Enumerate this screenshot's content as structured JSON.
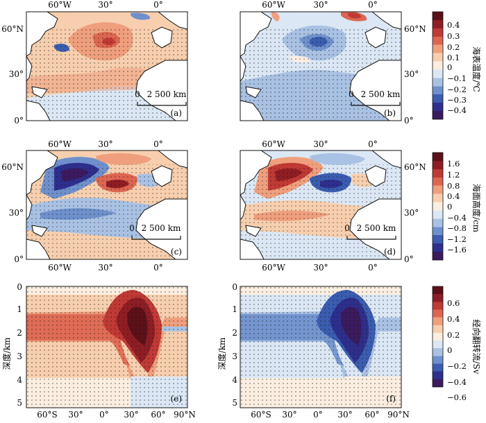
{
  "panels": [
    {
      "id": "a",
      "type": "map",
      "label": "(a)",
      "scale_left": "0",
      "scale_right": "2 500 km",
      "top_lon": [
        "60°W",
        "30°",
        "0°"
      ],
      "lat": [
        "0°",
        "30°",
        "60°N"
      ],
      "field": "temp_pos"
    },
    {
      "id": "b",
      "type": "map",
      "label": "(b)",
      "scale_left": "0",
      "scale_right": "2 500 km",
      "top_lon": [
        "60°W",
        "30°",
        "0°"
      ],
      "lat": [
        "0°",
        "30°",
        "60°N"
      ],
      "field": "temp_neg"
    },
    {
      "id": "c",
      "type": "map",
      "label": "(c)",
      "scale_left": "0",
      "scale_right": "2 500 km",
      "top_lon": [
        "60°W",
        "30°",
        "0°"
      ],
      "bottom_lon": [
        "60°W",
        "30°",
        "0°"
      ],
      "lat": [
        "0°",
        "30°",
        "60°N"
      ],
      "field": "ssh_c"
    },
    {
      "id": "d",
      "type": "map",
      "label": "(d)",
      "scale_left": "0",
      "scale_right": "2 500 km",
      "top_lon": [
        "60°W",
        "30°",
        "0°"
      ],
      "bottom_lon": [
        "60°W",
        "30°",
        "0°"
      ],
      "lat": [
        "0°",
        "30°",
        "60°N"
      ],
      "field": "ssh_d"
    },
    {
      "id": "e",
      "type": "section",
      "label": "(e)",
      "ylabel": "深度/km",
      "depths": [
        "0",
        "1",
        "2",
        "3",
        "4",
        "5"
      ],
      "lat_labels": [
        "60°S",
        "30°",
        "0°",
        "30°",
        "60°",
        "90°N"
      ],
      "field": "amoc_pos"
    },
    {
      "id": "f",
      "type": "section",
      "label": "(f)",
      "ylabel": "深度/km",
      "depths": [
        "0",
        "1",
        "2",
        "3",
        "4",
        "5"
      ],
      "lat_labels": [
        "60°S",
        "30°",
        "0°",
        "30°",
        "60°",
        "90°N"
      ],
      "field": "amoc_neg"
    }
  ],
  "colorbars": [
    {
      "id": "sst",
      "title": "海表温度/℃",
      "ticks": [
        "0.4",
        "0.3",
        "0.2",
        "0.1",
        "0",
        "−0.1",
        "−0.2",
        "−0.3",
        "−0.4"
      ]
    },
    {
      "id": "ssh",
      "title": "海面高度/cm",
      "ticks": [
        "1.6",
        "1.2",
        "0.8",
        "0.4",
        "0",
        "−0.4",
        "−0.8",
        "−1.2",
        "−1.6"
      ]
    },
    {
      "id": "amoc",
      "title": "经向翻转流/Sv",
      "ticks": [
        "0.6",
        "0.4",
        "0.2",
        "0",
        "−0.2",
        "−0.4",
        "−0.6"
      ]
    }
  ],
  "colors": {
    "palette": [
      "#3b1a5e",
      "#2e2f8c",
      "#3a5db0",
      "#6e90cc",
      "#a9c2e4",
      "#dbe7f4",
      "#fbeee0",
      "#f7cfae",
      "#ef9f7d",
      "#dd6651",
      "#c03a35",
      "#8e1e24",
      "#5c1018"
    ],
    "land": "#ffffff",
    "coast": "#111111"
  }
}
